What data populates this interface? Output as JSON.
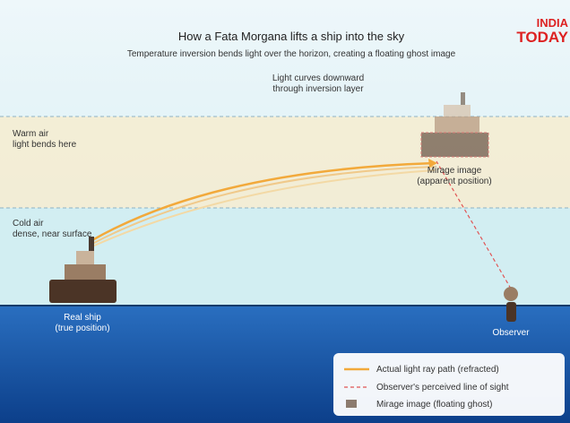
{
  "header": {
    "title": "How a Fata Morgana lifts a ship into the sky",
    "subtitle": "Temperature inversion bends light over the horizon, creating a floating ghost image",
    "logo": [
      "INDIA",
      "TODAY"
    ]
  },
  "labels": {
    "inversion": [
      "Light curves downward",
      "through inversion layer"
    ],
    "warm": [
      "Warm air",
      "light bends here"
    ],
    "cold": [
      "Cold air",
      "dense, near surface"
    ],
    "mirage": [
      "Mirage image",
      "(apparent position)"
    ],
    "ship": [
      "Real ship",
      "(true position)"
    ],
    "observer": "Observer"
  },
  "legend": {
    "items": [
      "Actual light ray path (refracted)",
      "Observer's perceived line of sight",
      "Mirage image (floating ghost)"
    ]
  }
}
